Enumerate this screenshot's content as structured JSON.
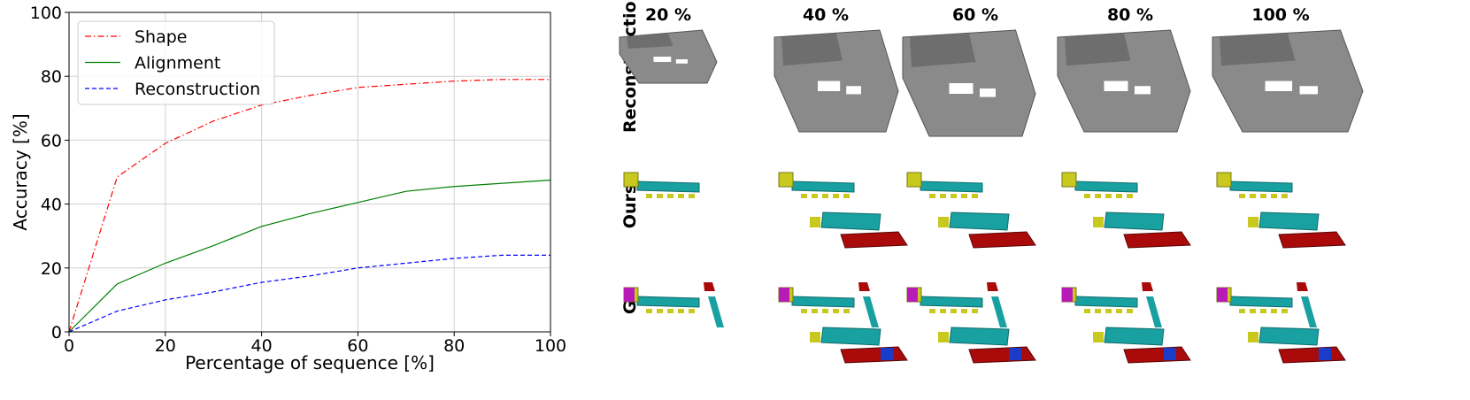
{
  "chart_data": {
    "type": "line",
    "xlabel": "Percentage of sequence [%]",
    "ylabel": "Accuracy [%]",
    "xlim": [
      0,
      100
    ],
    "ylim": [
      0,
      100
    ],
    "xticks": [
      "0",
      "20",
      "40",
      "60",
      "80",
      "100"
    ],
    "yticks": [
      "0",
      "20",
      "40",
      "60",
      "80",
      "100"
    ],
    "grid": true,
    "legend_position": "top-left",
    "series": [
      {
        "name": "Shape",
        "color": "#ff0000",
        "style": "dashdot",
        "x": [
          0,
          10,
          20,
          30,
          40,
          50,
          60,
          70,
          80,
          90,
          100
        ],
        "y": [
          0,
          48.5,
          59,
          66,
          71,
          74,
          76.5,
          77.5,
          78.5,
          79,
          79
        ]
      },
      {
        "name": "Alignment",
        "color": "#008000",
        "style": "solid",
        "x": [
          0,
          10,
          20,
          30,
          40,
          50,
          60,
          70,
          80,
          90,
          100
        ],
        "y": [
          0,
          15,
          21.5,
          27,
          33,
          37,
          40.5,
          44,
          45.5,
          46.5,
          47.5
        ]
      },
      {
        "name": "Reconstruction",
        "color": "#0000ff",
        "style": "dashed",
        "x": [
          0,
          10,
          20,
          30,
          40,
          50,
          60,
          70,
          80,
          90,
          100
        ],
        "y": [
          0,
          6.5,
          10,
          12.5,
          15.5,
          17.5,
          20,
          21.5,
          23,
          24,
          24
        ]
      }
    ]
  },
  "figure_panel": {
    "columns": [
      "20 %",
      "40 %",
      "60 %",
      "80 %",
      "100 %"
    ],
    "rows": [
      "Reconstruction",
      "Ours",
      "GT"
    ]
  },
  "colors": {
    "chair": "#c8c81e",
    "table": "#19a0a0",
    "sofa": "#aa0a0a",
    "cabinet": "#b81ab8",
    "other": "#1a3cc8",
    "mesh": "#8a8a8a"
  }
}
